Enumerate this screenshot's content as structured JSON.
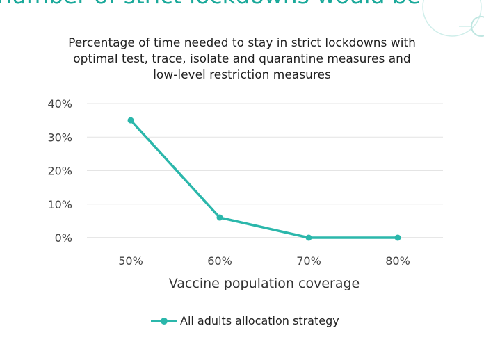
{
  "slide": {
    "heading": "number of strict lockdowns would be",
    "accent_color": "#1aa99a"
  },
  "chart_data": {
    "type": "line",
    "title_lines": [
      "Percentage of time needed to stay in strict lockdowns with",
      "optimal test, trace, isolate and quarantine measures and",
      "low-level restriction measures"
    ],
    "xlabel": "Vaccine population coverage",
    "ylabel": "",
    "categories": [
      "50%",
      "60%",
      "70%",
      "80%"
    ],
    "yticks": [
      "0%",
      "10%",
      "20%",
      "30%",
      "40%"
    ],
    "ylim": [
      0,
      40
    ],
    "grid": true,
    "legend_position": "bottom",
    "series": [
      {
        "name": "All adults allocation strategy",
        "values": [
          35,
          6,
          0,
          0
        ],
        "color": "#2bb7ab"
      }
    ]
  }
}
